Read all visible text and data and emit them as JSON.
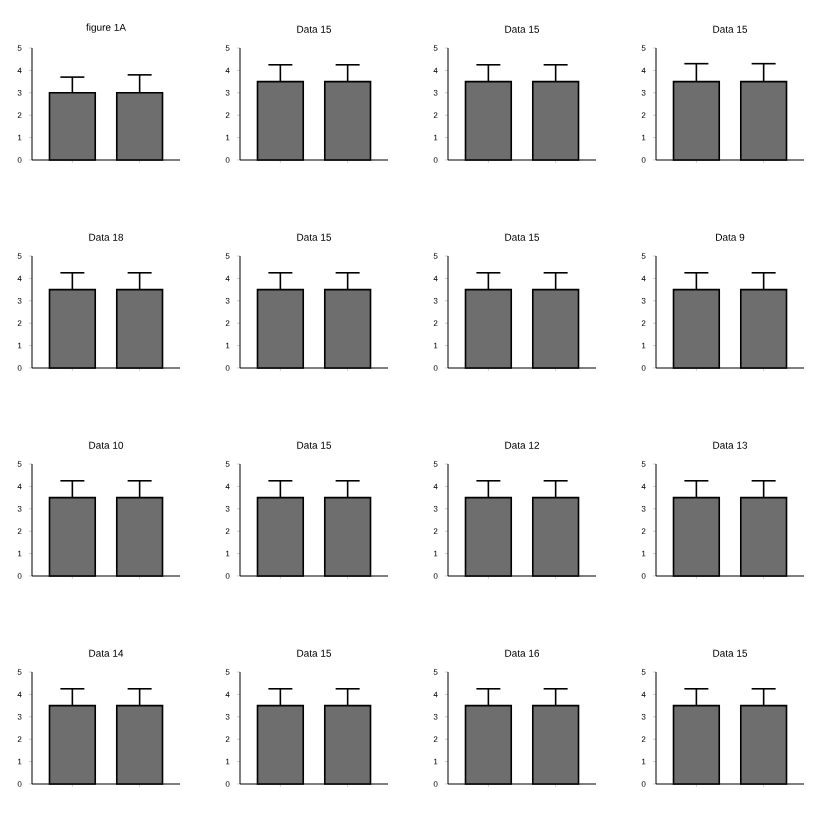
{
  "chart_data": [
    {
      "type": "bar",
      "title": "figure 1A",
      "categories": [
        null,
        null
      ],
      "values": [
        3.0,
        3.0
      ],
      "errors": [
        [
          3.0,
          3.7
        ],
        [
          3.0,
          3.8
        ]
      ],
      "color": "#6e6e6e",
      "ylim": [
        0,
        5
      ],
      "yticks": [
        0,
        1,
        2,
        3,
        4,
        5
      ]
    },
    {
      "type": "bar",
      "title": "Data 15",
      "categories": [
        null,
        null
      ],
      "values": [
        3.5,
        3.5
      ],
      "errors": [
        [
          3.5,
          4.25
        ],
        [
          3.5,
          4.25
        ]
      ],
      "color": "#6e6e6e",
      "ylim": [
        0,
        5
      ],
      "yticks": [
        0,
        1,
        2,
        3,
        4,
        5
      ]
    },
    {
      "type": "bar",
      "title": "Data 15",
      "categories": [
        null,
        null
      ],
      "values": [
        3.5,
        3.5
      ],
      "errors": [
        [
          3.5,
          4.25
        ],
        [
          3.5,
          4.25
        ]
      ],
      "color": "#6e6e6e",
      "ylim": [
        0,
        5
      ],
      "yticks": [
        0,
        1,
        2,
        3,
        4,
        5
      ]
    },
    {
      "type": "bar",
      "title": "Data 15",
      "categories": [
        null,
        null
      ],
      "values": [
        3.5,
        3.5
      ],
      "errors": [
        [
          3.5,
          4.3
        ],
        [
          3.5,
          4.3
        ]
      ],
      "color": "#6e6e6e",
      "ylim": [
        0,
        5
      ],
      "yticks": [
        0,
        1,
        2,
        3,
        4,
        5
      ]
    },
    {
      "type": "bar",
      "title": "Data 18",
      "categories": [
        null,
        null
      ],
      "values": [
        3.5,
        3.5
      ],
      "errors": [
        [
          3.5,
          4.25
        ],
        [
          3.5,
          4.25
        ]
      ],
      "color": "#6e6e6e",
      "ylim": [
        0,
        5
      ],
      "yticks": [
        0,
        1,
        2,
        3,
        4,
        5
      ]
    },
    {
      "type": "bar",
      "title": "Data 15",
      "categories": [
        null,
        null
      ],
      "values": [
        3.5,
        3.5
      ],
      "errors": [
        [
          3.5,
          4.25
        ],
        [
          3.5,
          4.25
        ]
      ],
      "color": "#6e6e6e",
      "ylim": [
        0,
        5
      ],
      "yticks": [
        0,
        1,
        2,
        3,
        4,
        5
      ]
    },
    {
      "type": "bar",
      "title": "Data 15",
      "categories": [
        null,
        null
      ],
      "values": [
        3.5,
        3.5
      ],
      "errors": [
        [
          3.5,
          4.25
        ],
        [
          3.5,
          4.25
        ]
      ],
      "color": "#6e6e6e",
      "ylim": [
        0,
        5
      ],
      "yticks": [
        0,
        1,
        2,
        3,
        4,
        5
      ]
    },
    {
      "type": "bar",
      "title": "Data 9",
      "categories": [
        null,
        null
      ],
      "values": [
        3.5,
        3.5
      ],
      "errors": [
        [
          3.5,
          4.25
        ],
        [
          3.5,
          4.25
        ]
      ],
      "color": "#6e6e6e",
      "ylim": [
        0,
        5
      ],
      "yticks": [
        0,
        1,
        2,
        3,
        4,
        5
      ]
    },
    {
      "type": "bar",
      "title": "Data 10",
      "categories": [
        null,
        null
      ],
      "values": [
        3.5,
        3.5
      ],
      "errors": [
        [
          3.5,
          4.25
        ],
        [
          3.5,
          4.25
        ]
      ],
      "color": "#6e6e6e",
      "ylim": [
        0,
        5
      ],
      "yticks": [
        0,
        1,
        2,
        3,
        4,
        5
      ]
    },
    {
      "type": "bar",
      "title": "Data 15",
      "categories": [
        null,
        null
      ],
      "values": [
        3.5,
        3.5
      ],
      "errors": [
        [
          3.5,
          4.25
        ],
        [
          3.5,
          4.25
        ]
      ],
      "color": "#6e6e6e",
      "ylim": [
        0,
        5
      ],
      "yticks": [
        0,
        1,
        2,
        3,
        4,
        5
      ]
    },
    {
      "type": "bar",
      "title": "Data 12",
      "categories": [
        null,
        null
      ],
      "values": [
        3.5,
        3.5
      ],
      "errors": [
        [
          3.5,
          4.25
        ],
        [
          3.5,
          4.25
        ]
      ],
      "color": "#6e6e6e",
      "ylim": [
        0,
        5
      ],
      "yticks": [
        0,
        1,
        2,
        3,
        4,
        5
      ]
    },
    {
      "type": "bar",
      "title": "Data 13",
      "categories": [
        null,
        null
      ],
      "values": [
        3.5,
        3.5
      ],
      "errors": [
        [
          3.5,
          4.25
        ],
        [
          3.5,
          4.25
        ]
      ],
      "color": "#6e6e6e",
      "ylim": [
        0,
        5
      ],
      "yticks": [
        0,
        1,
        2,
        3,
        4,
        5
      ]
    },
    {
      "type": "bar",
      "title": "Data 14",
      "categories": [
        null,
        null
      ],
      "values": [
        3.5,
        3.5
      ],
      "errors": [
        [
          3.5,
          4.25
        ],
        [
          3.5,
          4.25
        ]
      ],
      "color": "#6e6e6e",
      "ylim": [
        0,
        5
      ],
      "yticks": [
        0,
        1,
        2,
        3,
        4,
        5
      ]
    },
    {
      "type": "bar",
      "title": "Data 15",
      "categories": [
        null,
        null
      ],
      "values": [
        3.5,
        3.5
      ],
      "errors": [
        [
          3.5,
          4.25
        ],
        [
          3.5,
          4.25
        ]
      ],
      "color": "#6e6e6e",
      "ylim": [
        0,
        5
      ],
      "yticks": [
        0,
        1,
        2,
        3,
        4,
        5
      ]
    },
    {
      "type": "bar",
      "title": "Data 16",
      "categories": [
        null,
        null
      ],
      "values": [
        3.5,
        3.5
      ],
      "errors": [
        [
          3.5,
          4.25
        ],
        [
          3.5,
          4.25
        ]
      ],
      "color": "#6e6e6e",
      "ylim": [
        0,
        5
      ],
      "yticks": [
        0,
        1,
        2,
        3,
        4,
        5
      ]
    },
    {
      "type": "bar",
      "title": "Data 15",
      "categories": [
        null,
        null
      ],
      "values": [
        3.5,
        3.5
      ],
      "errors": [
        [
          3.5,
          4.25
        ],
        [
          3.5,
          4.25
        ]
      ],
      "color": "#6e6e6e",
      "ylim": [
        0,
        5
      ],
      "yticks": [
        0,
        1,
        2,
        3,
        4,
        5
      ]
    }
  ]
}
